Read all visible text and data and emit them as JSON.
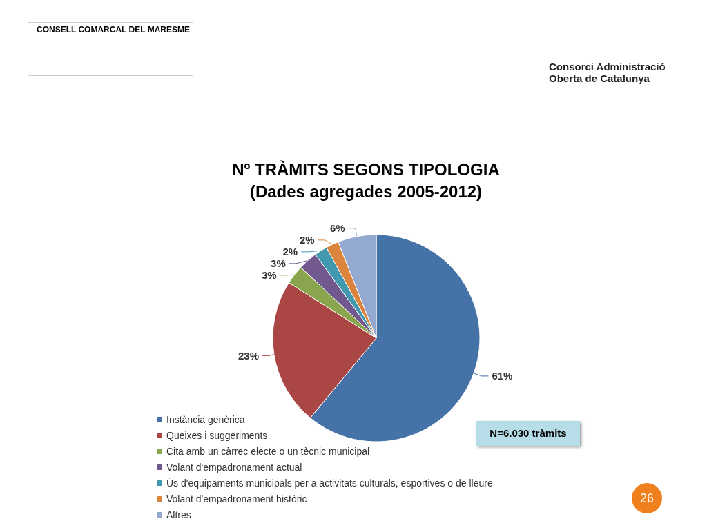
{
  "chart_data": {
    "type": "pie",
    "title": "Nº TRÀMITS SEGONS TIPOLOGIA",
    "subtitle": "(Dades agregades 2005-2012)",
    "categories": [
      "Instància genèrica",
      "Queixes i suggeriments",
      "Cita amb un càrrec electe o un tècnic municipal",
      "Volant d'empadronament actual",
      "Ús d'equipaments municipals per a activitats culturals, esportives o de lleure",
      "Volant d'empadronament històric",
      "Altres"
    ],
    "values": [
      61,
      23,
      3,
      3,
      2,
      2,
      6
    ],
    "colors": [
      "#4572a7",
      "#aa4643",
      "#89a54e",
      "#71588f",
      "#4198af",
      "#db843d",
      "#93a9cf"
    ],
    "value_labels": [
      "61%",
      "23%",
      "3%",
      "3%",
      "2%",
      "2%",
      "6%"
    ],
    "legend": "bottom left",
    "annotations": [
      "CONSELL COMARCAL DEL MARESME",
      "Consorci Administració Oberta de Catalunya",
      "N=6.030 tràmits",
      "26"
    ]
  }
}
